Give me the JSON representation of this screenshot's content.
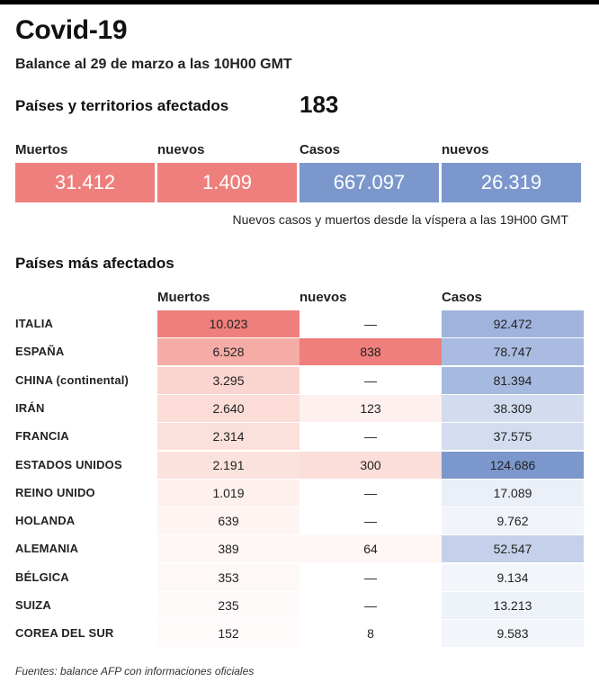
{
  "title": "Covid-19",
  "subtitle": "Balance al 29 de marzo a las 10H00 GMT",
  "affected": {
    "label": "Países y territorios afectados",
    "value": "183"
  },
  "summary": {
    "headers": [
      "Muertos",
      "nuevos",
      "Casos",
      "nuevos"
    ],
    "values": [
      "31.412",
      "1.409",
      "667.097",
      "26.319"
    ],
    "colors": [
      "#ee7f7c",
      "#ee7f7c",
      "#7b97cc",
      "#7b97cc"
    ],
    "note": "Nuevos casos y muertos desde la víspera a las 19H00 GMT"
  },
  "section_title": "Países más afectados",
  "footer": "Fuentes: balance AFP con informaciones oficiales",
  "chart_data": {
    "type": "table",
    "columns": [
      "Muertos",
      "nuevos",
      "Casos"
    ],
    "rows": [
      {
        "country": "ITALIA",
        "deaths": "10.023",
        "new": "—",
        "cases": "92.472",
        "colors": [
          "#ee7f7c",
          "#ffffff",
          "#a0b3dd"
        ]
      },
      {
        "country": "ESPAÑA",
        "deaths": "6.528",
        "new": "838",
        "cases": "78.747",
        "colors": [
          "#f5aca6",
          "#ee7f7c",
          "#a9bbe0"
        ]
      },
      {
        "country": "CHINA (continental)",
        "deaths": "3.295",
        "new": "—",
        "cases": "81.394",
        "colors": [
          "#fad4ce",
          "#ffffff",
          "#a6b9df"
        ]
      },
      {
        "country": "IRÁN",
        "deaths": "2.640",
        "new": "123",
        "cases": "38.309",
        "colors": [
          "#fbdcd7",
          "#fdf0ee",
          "#d3dcef"
        ]
      },
      {
        "country": "FRANCIA",
        "deaths": "2.314",
        "new": "—",
        "cases": "37.575",
        "colors": [
          "#fbe0db",
          "#ffffff",
          "#d4ddf0"
        ]
      },
      {
        "country": "ESTADOS UNIDOS",
        "deaths": "2.191",
        "new": "300",
        "cases": "124.686",
        "colors": [
          "#fce2dd",
          "#fbded9",
          "#7b97cc"
        ]
      },
      {
        "country": "REINO UNIDO",
        "deaths": "1.019",
        "new": "—",
        "cases": "17.089",
        "colors": [
          "#fdf0ed",
          "#ffffff",
          "#eaeff8"
        ]
      },
      {
        "country": "HOLANDA",
        "deaths": "639",
        "new": "—",
        "cases": "9.762",
        "colors": [
          "#fef4f2",
          "#ffffff",
          "#f1f4fa"
        ]
      },
      {
        "country": "ALEMANIA",
        "deaths": "389",
        "new": "64",
        "cases": "52.547",
        "colors": [
          "#fef7f5",
          "#fef6f4",
          "#c5d1ea"
        ]
      },
      {
        "country": "BÉLGICA",
        "deaths": "353",
        "new": "—",
        "cases": "9.134",
        "colors": [
          "#fef8f6",
          "#ffffff",
          "#f2f5fa"
        ]
      },
      {
        "country": "SUIZA",
        "deaths": "235",
        "new": "—",
        "cases": "13.213",
        "colors": [
          "#fefaf9",
          "#ffffff",
          "#eef2f9"
        ]
      },
      {
        "country": "COREA DEL SUR",
        "deaths": "152",
        "new": "8",
        "cases": "9.583",
        "colors": [
          "#fefbfa",
          "#ffffff",
          "#f2f5fa"
        ]
      }
    ]
  }
}
